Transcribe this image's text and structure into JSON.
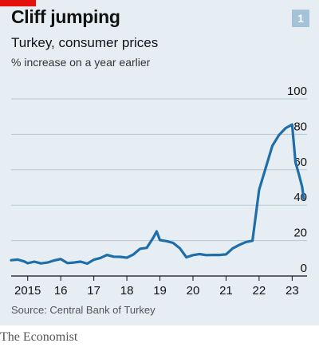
{
  "header": {
    "title": "Cliff jumping",
    "subtitle": "Turkey, consumer prices",
    "unit": "% increase on a year earlier",
    "chart_number": "1"
  },
  "source": "Source: Central Bank of Turkey",
  "footer": "The Economist",
  "colors": {
    "line": "#1f6ea8",
    "background": "#e6eef3",
    "accent": "#e3120b",
    "gridline": "#b7c8d3"
  },
  "chart_data": {
    "type": "line",
    "title": "Cliff jumping",
    "subtitle": "Turkey, consumer prices",
    "ylabel": "% increase on a year earlier",
    "ylim": [
      0,
      100
    ],
    "yticks": [
      0,
      20,
      40,
      60,
      80,
      100
    ],
    "xlim": [
      2014.5,
      2023.45
    ],
    "xticks": [
      {
        "value": 2015,
        "label": "2015"
      },
      {
        "value": 2016,
        "label": "16"
      },
      {
        "value": 2017,
        "label": "17"
      },
      {
        "value": 2018,
        "label": "18"
      },
      {
        "value": 2019,
        "label": "19"
      },
      {
        "value": 2020,
        "label": "20"
      },
      {
        "value": 2021,
        "label": "21"
      },
      {
        "value": 2022,
        "label": "22"
      },
      {
        "value": 2023,
        "label": "23"
      }
    ],
    "grid": true,
    "series": [
      {
        "x": [
          2014.5,
          2014.7,
          2014.9,
          2015.0,
          2015.2,
          2015.4,
          2015.6,
          2015.8,
          2016.0,
          2016.2,
          2016.4,
          2016.6,
          2016.8,
          2017.0,
          2017.2,
          2017.4,
          2017.6,
          2017.8,
          2018.0,
          2018.2,
          2018.4,
          2018.6,
          2018.8,
          2018.9,
          2019.0,
          2019.2,
          2019.4,
          2019.6,
          2019.8,
          2020.0,
          2020.2,
          2020.4,
          2020.6,
          2020.8,
          2021.0,
          2021.2,
          2021.4,
          2021.6,
          2021.8,
          2022.0,
          2022.2,
          2022.4,
          2022.6,
          2022.8,
          2023.0,
          2023.1,
          2023.2,
          2023.3,
          2023.35
        ],
        "values": [
          8.9,
          9.3,
          8.2,
          7.2,
          8.1,
          7.1,
          7.6,
          8.8,
          9.6,
          7.3,
          7.6,
          8.1,
          7.0,
          9.2,
          10.2,
          11.9,
          10.9,
          10.8,
          10.3,
          12.2,
          15.4,
          15.9,
          21.6,
          25.2,
          20.3,
          19.7,
          18.7,
          15.7,
          10.6,
          11.8,
          12.4,
          11.8,
          11.9,
          11.9,
          12.2,
          15.6,
          17.5,
          19.2,
          19.9,
          48.7,
          61.1,
          73.5,
          79.6,
          83.5,
          85.5,
          64.3,
          57.7,
          50.5,
          43.7
        ]
      }
    ]
  }
}
